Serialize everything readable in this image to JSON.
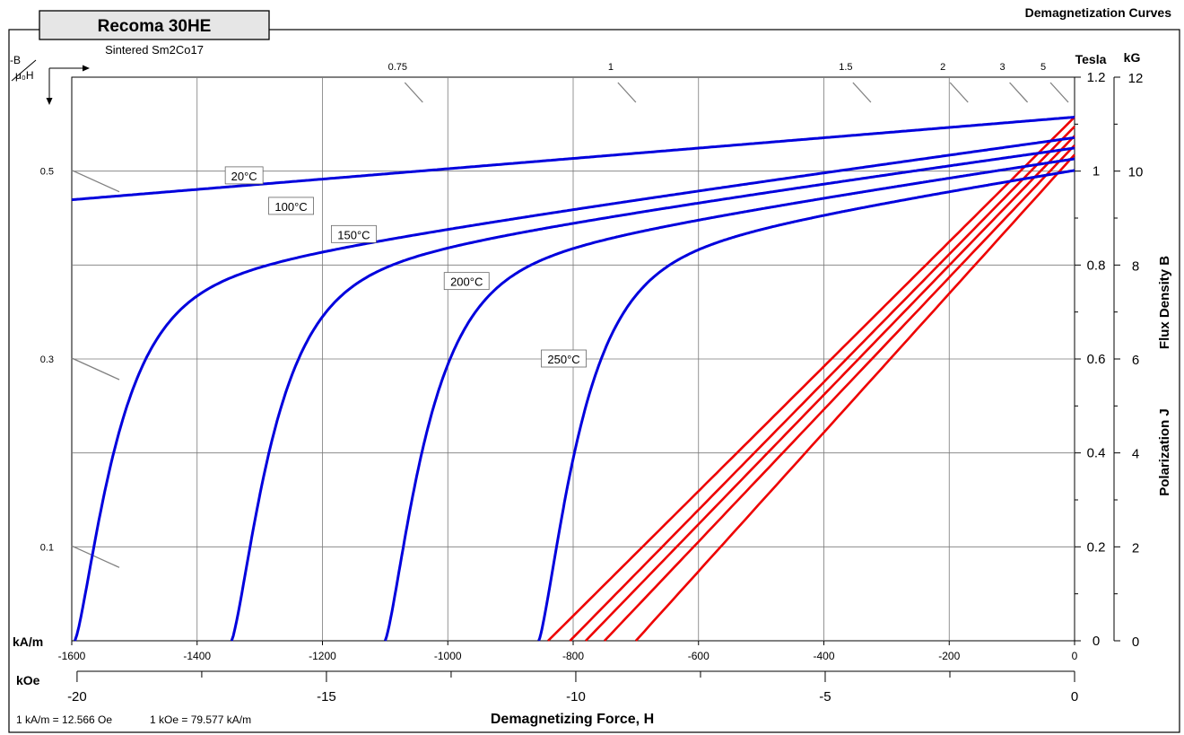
{
  "product": {
    "name": "Recoma 30HE",
    "material": "Sintered Sm2Co17",
    "chart_title": "Demagnetization Curves"
  },
  "axes": {
    "bottom_unit": "kA/m",
    "second_unit": "kOe",
    "xlabel": "Demagnetizing Force, H",
    "right_unit_tesla": "Tesla",
    "right_unit_kg": "kG",
    "right_label_b": "Flux Density  B",
    "right_label_j": "Polarization  J",
    "conversion_1": "1 kA/m = 12.566 Oe",
    "conversion_2": "1 kOe = 79.577 kA/m",
    "permeance_label_top": "-B",
    "permeance_label_bottom": "μ₀H"
  },
  "chart_data": {
    "type": "line",
    "title": "Demagnetization Curves",
    "xlabel": "Demagnetizing Force, H",
    "ylabel": "Polarization J / Flux Density B",
    "xlim": [
      -1600,
      0
    ],
    "ylim": [
      0,
      1.2
    ],
    "x_unit": "kA/m",
    "y_unit": "Tesla",
    "x_ticks": [
      -1600,
      -1400,
      -1200,
      -1000,
      -800,
      -600,
      -400,
      -200,
      0
    ],
    "x_tick_labels": [
      "-1600",
      "-1400",
      "-1200",
      "-1000",
      "-800",
      "-600",
      "-400",
      "-200",
      "0"
    ],
    "koe_ticks": [
      -20,
      -15,
      -10,
      -5,
      0
    ],
    "koe_tick_labels": [
      "-20",
      "-15",
      "-10",
      "-5",
      "0"
    ],
    "tesla_ticks": [
      0,
      0.2,
      0.4,
      0.6,
      0.8,
      1,
      1.2
    ],
    "tesla_tick_labels": [
      "0",
      "0.2",
      "0.4",
      "0.6",
      "0.8",
      "1",
      "1.2"
    ],
    "kg_ticks": [
      0,
      2,
      4,
      6,
      8,
      10,
      12
    ],
    "kg_tick_labels": [
      "0",
      "2",
      "4",
      "6",
      "8",
      "10",
      "12"
    ],
    "permeance_top_labels": [
      {
        "label": "0.75",
        "x": -1040
      },
      {
        "label": "1",
        "x": -700
      },
      {
        "label": "1.5",
        "x": -325
      },
      {
        "label": "2",
        "x": -170
      },
      {
        "label": "3",
        "x": -75
      },
      {
        "label": "5",
        "x": -10
      }
    ],
    "permeance_left_labels": [
      {
        "label": "0.5",
        "y": 1.0
      },
      {
        "label": "0.3",
        "y": 0.6
      },
      {
        "label": "0.1",
        "y": 0.2
      }
    ],
    "grid": true,
    "j_series": [
      {
        "name": "20°C",
        "Br": 1.115,
        "Hcj": null,
        "slope": 0.00011,
        "label_at": [
          -1325,
          0.99
        ]
      },
      {
        "name": "100°C",
        "Br": 1.085,
        "Hcj": -1595,
        "slope": 0.00018,
        "label_at": [
          -1250,
          0.925
        ]
      },
      {
        "name": "150°C",
        "Br": 1.065,
        "Hcj": -1345,
        "slope": 0.00018,
        "label_at": [
          -1150,
          0.865
        ]
      },
      {
        "name": "200°C",
        "Br": 1.045,
        "Hcj": -1100,
        "slope": 0.00019,
        "label_at": [
          -970,
          0.765
        ]
      },
      {
        "name": "250°C",
        "Br": 1.025,
        "Hcj": -855,
        "slope": 0.0002,
        "label_at": [
          -815,
          0.6
        ]
      }
    ],
    "b_series": [
      {
        "Br": 1.115,
        "Hcb": -840
      },
      {
        "Br": 1.095,
        "Hcb": -805
      },
      {
        "Br": 1.075,
        "Hcb": -780
      },
      {
        "Br": 1.055,
        "Hcb": -750
      },
      {
        "Br": 1.035,
        "Hcb": -700
      }
    ],
    "colors": {
      "j": "#0000dd",
      "b": "#ee0000",
      "grid": "#7a7a7a",
      "header_box": "#e6e6e6"
    }
  }
}
